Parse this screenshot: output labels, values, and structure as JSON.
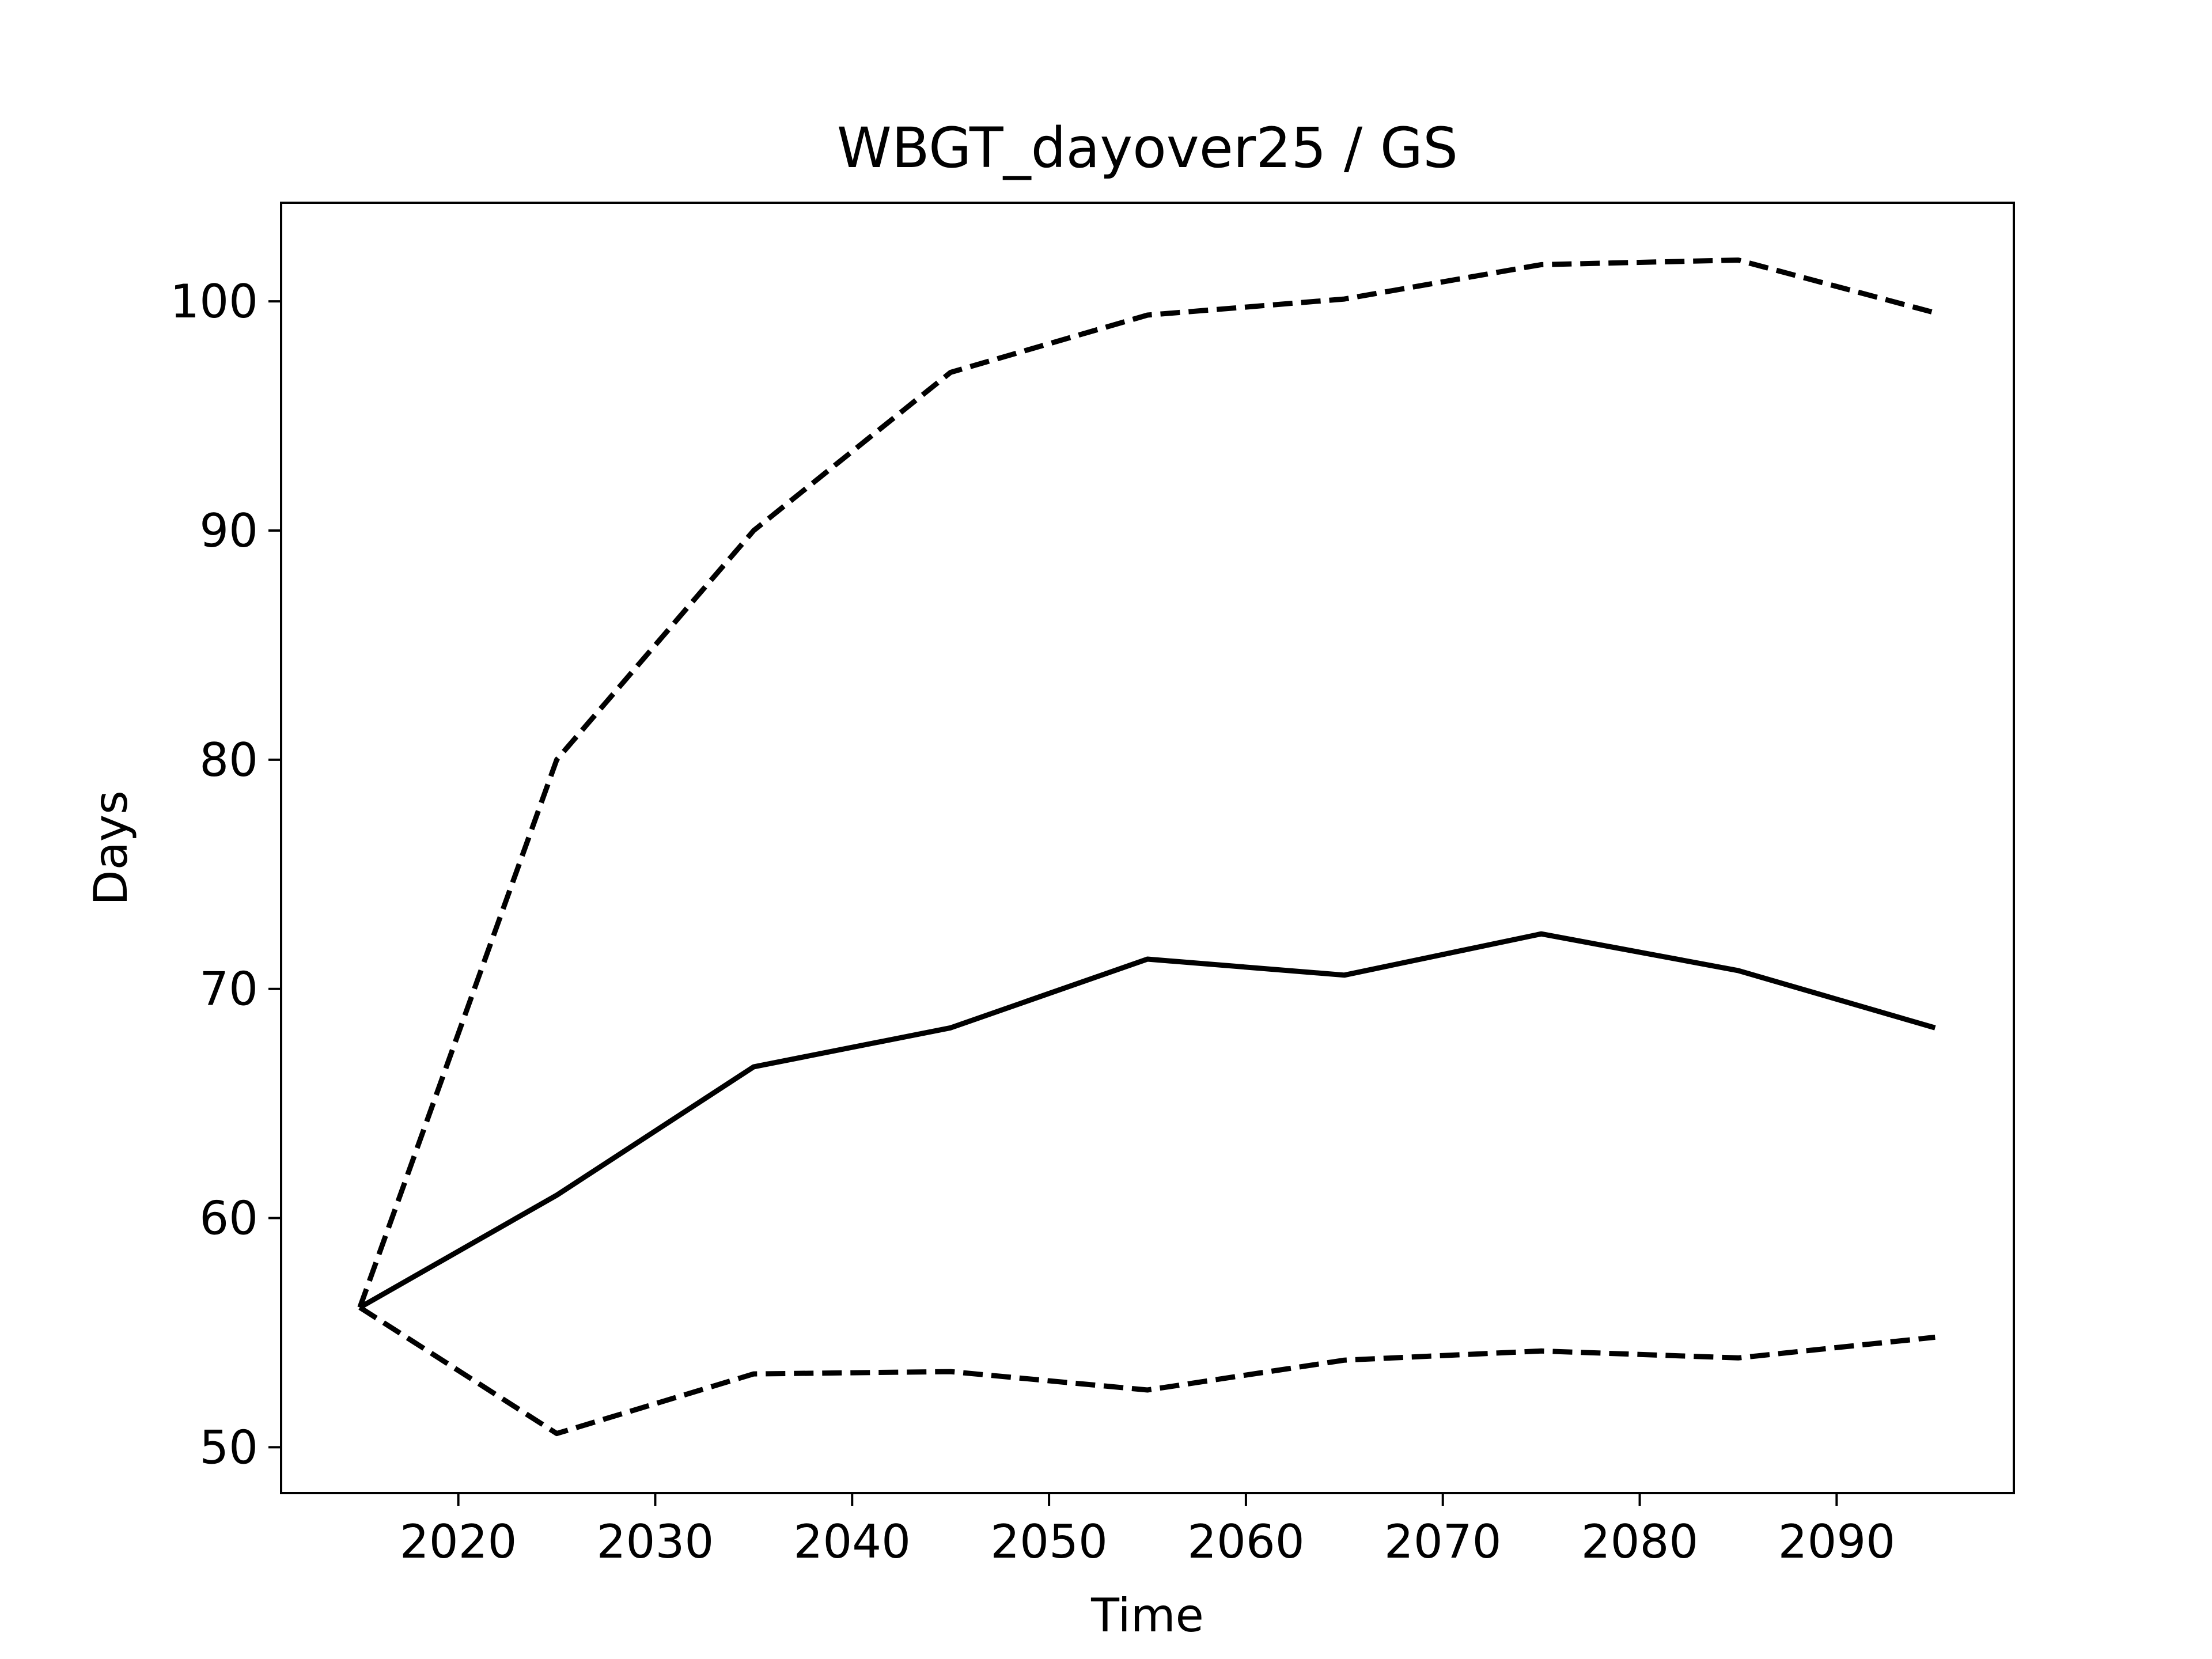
{
  "chart_data": {
    "type": "line",
    "title": "WBGT_dayover25 / GS",
    "xlabel": "Time",
    "ylabel": "Days",
    "xlim": [
      2011,
      2099
    ],
    "ylim": [
      48,
      104.3
    ],
    "xticks": [
      2020,
      2030,
      2040,
      2050,
      2060,
      2070,
      2080,
      2090
    ],
    "yticks": [
      50,
      60,
      70,
      80,
      90,
      100
    ],
    "grid": false,
    "x": [
      2015,
      2025,
      2035,
      2045,
      2055,
      2065,
      2075,
      2085,
      2095
    ],
    "series": [
      {
        "style": "solid",
        "values": [
          56.1,
          61.0,
          66.6,
          68.3,
          71.3,
          70.6,
          72.4,
          70.8,
          68.3
        ]
      },
      {
        "style": "dashed",
        "values": [
          56.1,
          80.0,
          90.0,
          96.9,
          99.4,
          100.1,
          101.6,
          101.8,
          99.5
        ]
      },
      {
        "style": "dashed",
        "values": [
          56.1,
          50.6,
          53.2,
          53.3,
          52.5,
          53.8,
          54.2,
          53.9,
          54.8
        ]
      }
    ],
    "line_color": "#000000"
  }
}
